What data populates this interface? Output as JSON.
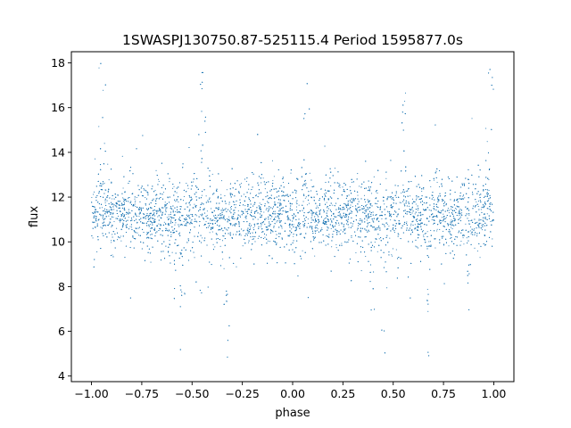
{
  "chart_data": {
    "type": "scatter",
    "title": "1SWASPJ130750.87-525115.4 Period 1595877.0s",
    "xlabel": "phase",
    "ylabel": "flux",
    "xlim": [
      -1.1,
      1.1
    ],
    "ylim": [
      3.75,
      18.5
    ],
    "x_ticks": [
      -1.0,
      -0.75,
      -0.5,
      -0.25,
      0.0,
      0.25,
      0.5,
      0.75,
      1.0
    ],
    "x_tick_labels": [
      "−1.00",
      "−0.75",
      "−0.50",
      "−0.25",
      "0.00",
      "0.25",
      "0.50",
      "0.75",
      "1.00"
    ],
    "y_ticks": [
      4,
      6,
      8,
      10,
      12,
      14,
      16,
      18
    ],
    "y_tick_labels": [
      "4",
      "6",
      "8",
      "10",
      "12",
      "14",
      "16",
      "18"
    ],
    "grid": false,
    "legend": "none",
    "marker_color": "#1f77b4",
    "x_range": [
      -1.0,
      1.0
    ],
    "y_range": [
      4.3,
      18.0
    ],
    "median_flux": 11.2,
    "core_spread": [
      9.8,
      12.6
    ],
    "high_flux_spikes_phase": [
      -0.95,
      -0.45,
      0.07,
      0.55,
      0.98
    ],
    "low_flux_dips_phase": [
      -0.6,
      -0.55,
      -0.33,
      0.4,
      0.45,
      0.67,
      0.88
    ]
  }
}
